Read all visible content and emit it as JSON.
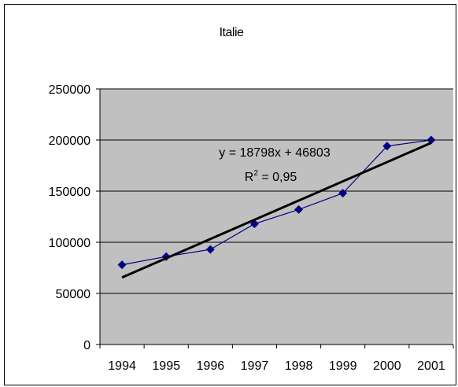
{
  "chart_data": {
    "type": "line",
    "title": "Italie",
    "categories": [
      "1994",
      "1995",
      "1996",
      "1997",
      "1998",
      "1999",
      "2000",
      "2001"
    ],
    "series": [
      {
        "values": [
          78000,
          86000,
          93000,
          118000,
          132000,
          148000,
          194000,
          200000
        ],
        "color": "#000080",
        "marker": "diamond"
      }
    ],
    "trendline": {
      "type": "linear",
      "slope": 18798,
      "intercept": 46803,
      "color": "#000000",
      "equation": "y = 18798x + 46803",
      "r2_label": "R",
      "r2_sup": "2",
      "r2_value": " = 0,95"
    },
    "ylim": [
      0,
      250000
    ],
    "yticks": [
      "0",
      "50000",
      "100000",
      "150000",
      "200000",
      "250000"
    ],
    "grid": true,
    "plot_background": "#c0c0c0",
    "legend": "none"
  }
}
